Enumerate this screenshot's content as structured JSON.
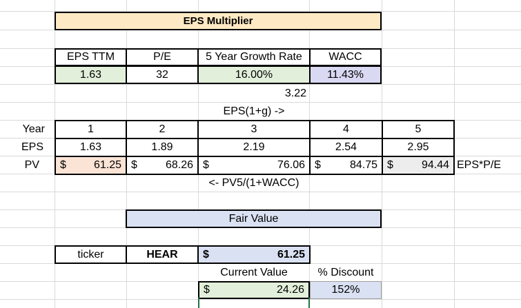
{
  "colors": {
    "title_fill": "#fde9c4",
    "input_green": "#e2efda",
    "wacc_purple": "#d9d9f3",
    "pv_orange": "#fbe4d5",
    "pv5_gray": "#ededed",
    "fair_value_fill": "#d9e1f2",
    "gridline": "#d9d9d9",
    "selected_border": "#217346"
  },
  "title": "EPS Multiplier",
  "inputs": {
    "headers": [
      "EPS TTM",
      "P/E",
      "5 Year Growth Rate",
      "WACC"
    ],
    "values": [
      "1.63",
      "32",
      "16.00%",
      "11.43%"
    ]
  },
  "multiplier_value": "3.22",
  "growth_note": "EPS(1+g) ->",
  "row_labels": {
    "year": "Year",
    "eps": "EPS",
    "pv": "PV"
  },
  "years": [
    "1",
    "2",
    "3",
    "4",
    "5"
  ],
  "eps": [
    "1.63",
    "1.89",
    "2.19",
    "2.54",
    "2.95"
  ],
  "pv": {
    "symbol": "$",
    "values": [
      "61.25",
      "68.26",
      "76.06",
      "84.75",
      "94.44"
    ]
  },
  "eps_pe_note": "EPS*P/E",
  "pv_note": "<- PV5/(1+WACC)",
  "fair_value": {
    "title": "Fair Value",
    "ticker_label": "ticker",
    "ticker": "HEAR",
    "symbol": "$",
    "value": "61.25",
    "current_label": "Current Value",
    "discount_label": "% Discount",
    "current_value": "24.26",
    "discount": "152%"
  }
}
